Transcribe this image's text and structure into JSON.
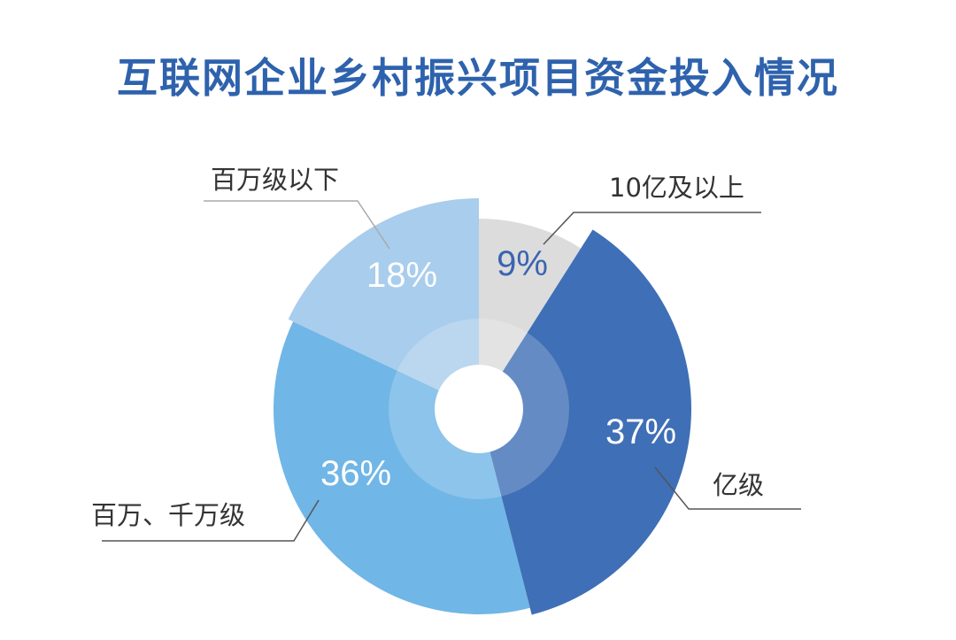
{
  "chart_data": {
    "type": "pie",
    "title": "互联网企业乡村振兴项目资金投入情况",
    "categories": [
      "10亿及以上",
      "亿级",
      "百万、千万级",
      "百万级以下"
    ],
    "values": [
      9,
      37,
      36,
      18
    ],
    "value_labels": [
      "9%",
      "37%",
      "36%",
      "18%"
    ],
    "unit": "%",
    "colors": [
      "#dcdcdc",
      "#3f6fb6",
      "#70b6e6",
      "#a9cdec"
    ],
    "value_label_colors": [
      "#3a64b0",
      "#ffffff",
      "#ffffff",
      "#ffffff"
    ],
    "legend": "none"
  }
}
